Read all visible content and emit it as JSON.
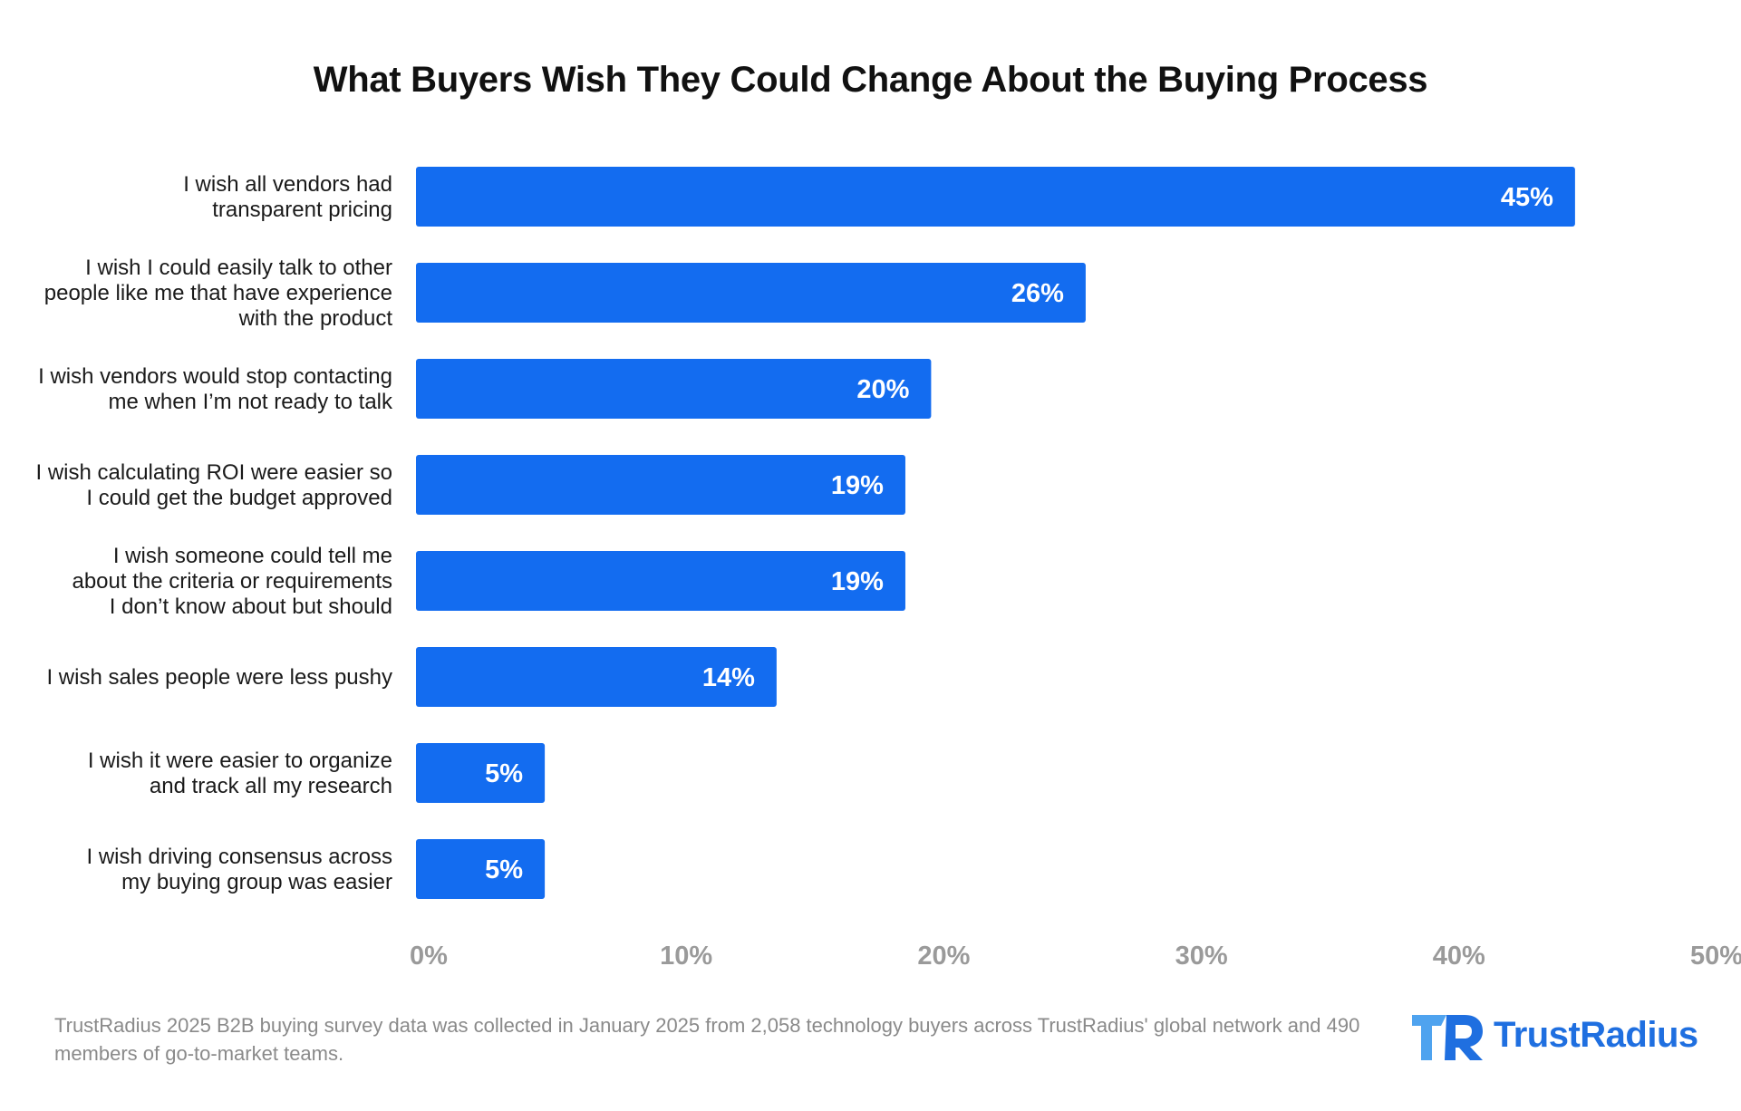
{
  "chart_data": {
    "type": "bar",
    "orientation": "horizontal",
    "title": "What Buyers Wish They Could Change About the Buying Process",
    "categories": [
      [
        "I wish all vendors had",
        "transparent pricing"
      ],
      [
        "I wish I could easily talk to other",
        "people like me that have experience",
        "with the product"
      ],
      [
        "I wish vendors would stop contacting",
        "me when I’m not ready to talk"
      ],
      [
        "I wish calculating ROI were easier so",
        "I could get the budget approved"
      ],
      [
        "I wish someone could tell me",
        "about the criteria or requirements",
        "I don’t know about but should"
      ],
      [
        "I wish sales people were less pushy"
      ],
      [
        "I wish it were easier to organize",
        "and track all my research"
      ],
      [
        "I wish driving consensus across",
        "my buying group was easier"
      ]
    ],
    "values": [
      45,
      26,
      20,
      19,
      19,
      14,
      5,
      5
    ],
    "value_labels": [
      "45%",
      "26%",
      "20%",
      "19%",
      "19%",
      "14%",
      "5%",
      "5%"
    ],
    "xlim": [
      0,
      50
    ],
    "xticks": [
      0,
      10,
      20,
      30,
      40,
      50
    ],
    "xtick_labels": [
      "0%",
      "10%",
      "20%",
      "30%",
      "40%",
      "50%"
    ],
    "bar_color": "#136cf0",
    "grid": false,
    "legend": false
  },
  "footnote": "TrustRadius 2025 B2B buying survey data was collected in January 2025 from 2,058 technology buyers across TrustRadius' global network and 490 members of go-to-market teams.",
  "brand": {
    "name": "TrustRadius",
    "icon": "trustradius-logo-icon",
    "color": "#1f6fe0"
  }
}
